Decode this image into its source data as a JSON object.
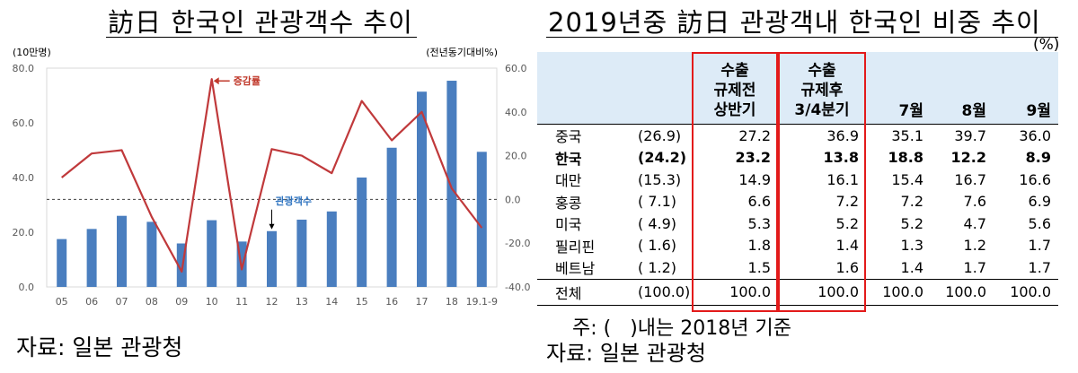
{
  "left": {
    "title": "訪日 한국인 관광객수 추이",
    "source": "자료: 일본 관광청"
  },
  "chart_data": {
    "type": "bar",
    "categories": [
      "05",
      "06",
      "07",
      "08",
      "09",
      "10",
      "11",
      "12",
      "13",
      "14",
      "15",
      "16",
      "17",
      "18",
      "19.1-9"
    ],
    "series": [
      {
        "name": "관광객수",
        "type": "bar",
        "axis": "left",
        "values": [
          17.5,
          21.2,
          26.0,
          23.8,
          15.9,
          24.4,
          16.6,
          20.4,
          24.6,
          27.6,
          40.0,
          50.9,
          71.4,
          75.4,
          49.4
        ]
      },
      {
        "name": "증감률",
        "type": "line",
        "axis": "right",
        "values": [
          10.0,
          21.0,
          22.5,
          -8.0,
          -33.0,
          55.0,
          -32.0,
          23.0,
          20.0,
          12.0,
          45.0,
          27.0,
          40.0,
          5.0,
          -13.0
        ]
      }
    ],
    "left_axis": {
      "label": "(10만명)",
      "ylim": [
        0,
        80
      ],
      "ticks": [
        "0.0",
        "20.0",
        "40.0",
        "60.0",
        "80.0"
      ]
    },
    "right_axis": {
      "label": "(전년동기대비%)",
      "ylim": [
        -40,
        60
      ],
      "ticks": [
        "-40.0",
        "-20.0",
        "0.0",
        "20.0",
        "40.0",
        "60.0"
      ]
    },
    "reference_line": 0,
    "annotations": [
      "증감률",
      "관광객수"
    ],
    "colors": {
      "bar": "#4a7ebf",
      "line": "#c0393b",
      "bar_label": "#2f74c0",
      "line_label": "#c0392b"
    }
  },
  "right": {
    "title": "2019년중 訪日 관광객내 한국인 비중 추이",
    "unit": "(%)",
    "headers": [
      "",
      "",
      [
        "수출",
        "규제전",
        "상반기"
      ],
      [
        "수출",
        "규제후",
        "3/4분기"
      ],
      "7월",
      "8월",
      "9월"
    ],
    "rows": [
      {
        "name": "중국",
        "prev": "(26.9)",
        "vals": [
          "27.2",
          "36.9",
          "35.1",
          "39.7",
          "36.0"
        ],
        "bold": false
      },
      {
        "name": "한국",
        "prev": "(24.2)",
        "vals": [
          "23.2",
          "13.8",
          "18.8",
          "12.2",
          "8.9"
        ],
        "bold": true
      },
      {
        "name": "대만",
        "prev": "(15.3)",
        "vals": [
          "14.9",
          "16.1",
          "15.4",
          "16.7",
          "16.6"
        ],
        "bold": false
      },
      {
        "name": "홍콩",
        "prev": "( 7.1)",
        "vals": [
          "6.6",
          "7.2",
          "7.2",
          "7.6",
          "6.9"
        ],
        "bold": false
      },
      {
        "name": "미국",
        "prev": "( 4.9)",
        "vals": [
          "5.3",
          "5.2",
          "5.2",
          "4.7",
          "5.6"
        ],
        "bold": false
      },
      {
        "name": "필리핀",
        "prev": "( 1.6)",
        "vals": [
          "1.8",
          "1.4",
          "1.3",
          "1.2",
          "1.7"
        ],
        "bold": false
      },
      {
        "name": "베트남",
        "prev": "( 1.2)",
        "vals": [
          "1.5",
          "1.6",
          "1.4",
          "1.7",
          "1.7"
        ],
        "bold": false
      }
    ],
    "total": {
      "name": "전체",
      "prev": "(100.0)",
      "vals": [
        "100.0",
        "100.0",
        "100.0",
        "100.0",
        "100.0"
      ]
    },
    "note": "주: (   )내는 2018년 기준",
    "source": "자료: 일본 관광청",
    "colors": {
      "header_bg": "#ddebf7",
      "highlight_border": "#e31a1a"
    }
  }
}
